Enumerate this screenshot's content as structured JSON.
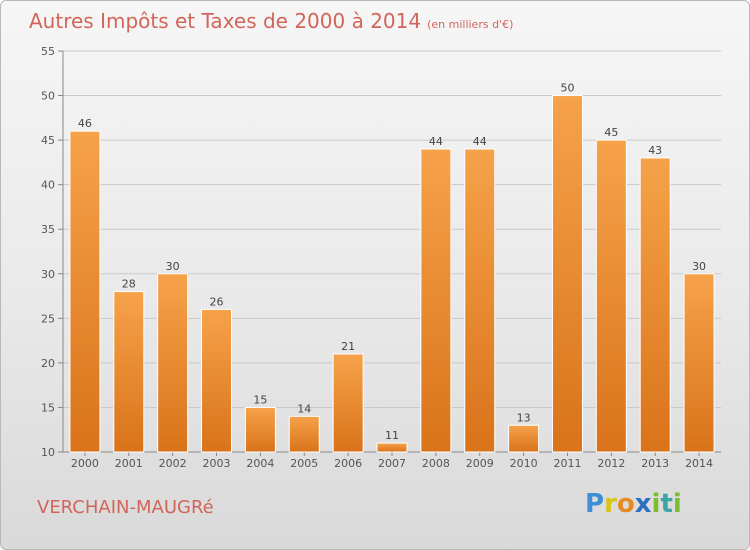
{
  "chart_data": {
    "type": "bar",
    "title": "Autres Impôts et Taxes de 2000 à 2014",
    "subtitle": "(en milliers d'€)",
    "categories": [
      "2000",
      "2001",
      "2002",
      "2003",
      "2004",
      "2005",
      "2006",
      "2007",
      "2008",
      "2009",
      "2010",
      "2011",
      "2012",
      "2013",
      "2014"
    ],
    "values": [
      46,
      28,
      30,
      26,
      15,
      14,
      21,
      11,
      44,
      44,
      13,
      50,
      45,
      43,
      30
    ],
    "ylim": [
      10,
      55
    ],
    "yticks": [
      10,
      15,
      20,
      25,
      30,
      35,
      40,
      45,
      50,
      55
    ],
    "grid": true,
    "bar_color": "#f39a3c",
    "bar_color_dark": "#d9731a"
  },
  "footer": {
    "commune": "VERCHAIN-MAUGRé",
    "logo_text": "Proxiti"
  }
}
